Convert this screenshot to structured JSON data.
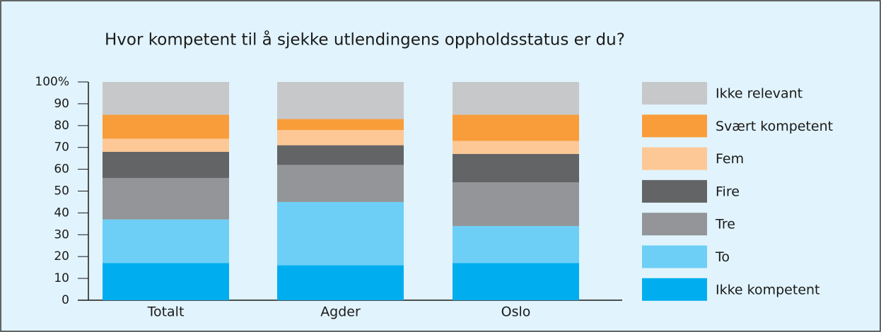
{
  "chart_data": {
    "type": "stacked_bar",
    "title": "Hvor kompetent til å sjekke utlendingens oppholdsstatus er du?",
    "categories": [
      "Totalt",
      "Agder",
      "Oslo"
    ],
    "series": [
      {
        "name": "Ikke kompetent",
        "color": "#00aeef",
        "values": [
          17,
          16,
          17
        ]
      },
      {
        "name": "To",
        "color": "#6dcff6",
        "values": [
          20,
          29,
          17
        ]
      },
      {
        "name": "Tre",
        "color": "#939598",
        "values": [
          19,
          17,
          20
        ]
      },
      {
        "name": "Fire",
        "color": "#636466",
        "values": [
          12,
          9,
          13
        ]
      },
      {
        "name": "Fem",
        "color": "#fdc895",
        "values": [
          6,
          7,
          6
        ]
      },
      {
        "name": "Svært kompetent",
        "color": "#f99d3a",
        "values": [
          11,
          5,
          12
        ]
      },
      {
        "name": "Ikke relevant",
        "color": "#c7c8ca",
        "values": [
          15,
          17,
          15
        ]
      }
    ],
    "ylim": [
      0,
      100
    ],
    "yticks": [
      0,
      10,
      20,
      30,
      40,
      50,
      60,
      70,
      80,
      90,
      {
        "value": 100,
        "label": "100%"
      }
    ],
    "legend": "right"
  }
}
